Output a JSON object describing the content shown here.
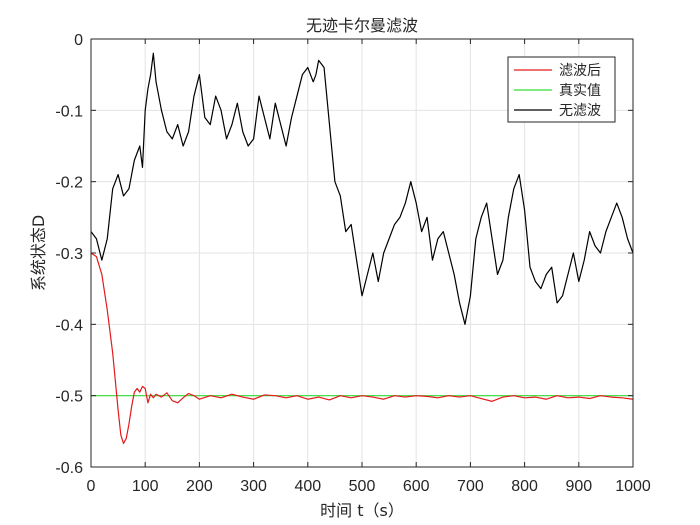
{
  "chart_data": {
    "type": "line",
    "title": "无迹卡尔曼滤波",
    "xlabel": "时间 t（s）",
    "ylabel": "系统状态D",
    "xlim": [
      0,
      1000
    ],
    "ylim": [
      -0.6,
      0
    ],
    "xticks": [
      "0",
      "100",
      "200",
      "300",
      "400",
      "500",
      "600",
      "700",
      "800",
      "900",
      "1000"
    ],
    "yticks": [
      "0",
      "-0.1",
      "-0.2",
      "-0.3",
      "-0.4",
      "-0.5",
      "-0.6"
    ],
    "grid": true,
    "legend_position": "top-right",
    "series": [
      {
        "name": "滤波后",
        "color": "#e41a1c",
        "x": [
          0,
          10,
          20,
          30,
          40,
          50,
          55,
          60,
          65,
          70,
          75,
          80,
          85,
          90,
          95,
          100,
          105,
          110,
          115,
          120,
          130,
          140,
          150,
          160,
          170,
          180,
          190,
          200,
          220,
          240,
          260,
          280,
          300,
          320,
          340,
          360,
          380,
          400,
          420,
          440,
          460,
          480,
          500,
          520,
          540,
          560,
          580,
          600,
          620,
          640,
          660,
          680,
          700,
          720,
          740,
          760,
          780,
          800,
          820,
          840,
          860,
          880,
          900,
          920,
          940,
          960,
          980,
          1000
        ],
        "y": [
          -0.3,
          -0.305,
          -0.33,
          -0.38,
          -0.44,
          -0.52,
          -0.555,
          -0.567,
          -0.56,
          -0.54,
          -0.515,
          -0.495,
          -0.49,
          -0.495,
          -0.487,
          -0.49,
          -0.51,
          -0.498,
          -0.503,
          -0.498,
          -0.502,
          -0.496,
          -0.507,
          -0.51,
          -0.503,
          -0.497,
          -0.5,
          -0.505,
          -0.5,
          -0.503,
          -0.498,
          -0.502,
          -0.505,
          -0.499,
          -0.5,
          -0.503,
          -0.5,
          -0.505,
          -0.502,
          -0.506,
          -0.5,
          -0.503,
          -0.5,
          -0.502,
          -0.505,
          -0.5,
          -0.502,
          -0.5,
          -0.501,
          -0.503,
          -0.5,
          -0.502,
          -0.5,
          -0.504,
          -0.508,
          -0.502,
          -0.5,
          -0.503,
          -0.502,
          -0.505,
          -0.5,
          -0.503,
          -0.502,
          -0.504,
          -0.5,
          -0.502,
          -0.503,
          -0.505
        ]
      },
      {
        "name": "真实值",
        "color": "#33dd33",
        "x": [
          0,
          1000
        ],
        "y": [
          -0.5,
          -0.5
        ]
      },
      {
        "name": "无滤波",
        "color": "#000000",
        "x": [
          0,
          10,
          20,
          30,
          40,
          50,
          60,
          70,
          80,
          90,
          95,
          100,
          105,
          110,
          115,
          120,
          125,
          130,
          140,
          150,
          160,
          170,
          180,
          190,
          200,
          210,
          220,
          230,
          240,
          250,
          260,
          270,
          280,
          290,
          300,
          310,
          320,
          330,
          340,
          350,
          360,
          370,
          380,
          390,
          400,
          410,
          415,
          420,
          430,
          440,
          450,
          460,
          470,
          480,
          490,
          500,
          510,
          520,
          530,
          540,
          550,
          560,
          570,
          580,
          590,
          600,
          610,
          620,
          630,
          640,
          650,
          660,
          670,
          680,
          690,
          700,
          710,
          720,
          730,
          740,
          750,
          760,
          770,
          780,
          790,
          800,
          810,
          820,
          830,
          840,
          850,
          860,
          870,
          880,
          890,
          900,
          910,
          920,
          930,
          940,
          950,
          960,
          970,
          980,
          990,
          1000
        ],
        "y": [
          -0.27,
          -0.28,
          -0.31,
          -0.28,
          -0.21,
          -0.19,
          -0.22,
          -0.21,
          -0.17,
          -0.15,
          -0.18,
          -0.1,
          -0.07,
          -0.05,
          -0.02,
          -0.06,
          -0.08,
          -0.1,
          -0.13,
          -0.14,
          -0.12,
          -0.15,
          -0.13,
          -0.08,
          -0.05,
          -0.11,
          -0.12,
          -0.08,
          -0.1,
          -0.14,
          -0.12,
          -0.09,
          -0.13,
          -0.15,
          -0.14,
          -0.08,
          -0.11,
          -0.14,
          -0.09,
          -0.12,
          -0.15,
          -0.11,
          -0.08,
          -0.05,
          -0.04,
          -0.06,
          -0.05,
          -0.03,
          -0.04,
          -0.12,
          -0.2,
          -0.22,
          -0.27,
          -0.26,
          -0.31,
          -0.36,
          -0.33,
          -0.3,
          -0.34,
          -0.3,
          -0.28,
          -0.26,
          -0.25,
          -0.23,
          -0.2,
          -0.23,
          -0.27,
          -0.25,
          -0.31,
          -0.28,
          -0.27,
          -0.3,
          -0.33,
          -0.37,
          -0.4,
          -0.36,
          -0.28,
          -0.25,
          -0.23,
          -0.28,
          -0.33,
          -0.31,
          -0.25,
          -0.21,
          -0.19,
          -0.24,
          -0.32,
          -0.34,
          -0.35,
          -0.33,
          -0.32,
          -0.37,
          -0.36,
          -0.33,
          -0.3,
          -0.34,
          -0.31,
          -0.27,
          -0.29,
          -0.3,
          -0.27,
          -0.25,
          -0.23,
          -0.25,
          -0.28,
          -0.3
        ]
      }
    ]
  }
}
